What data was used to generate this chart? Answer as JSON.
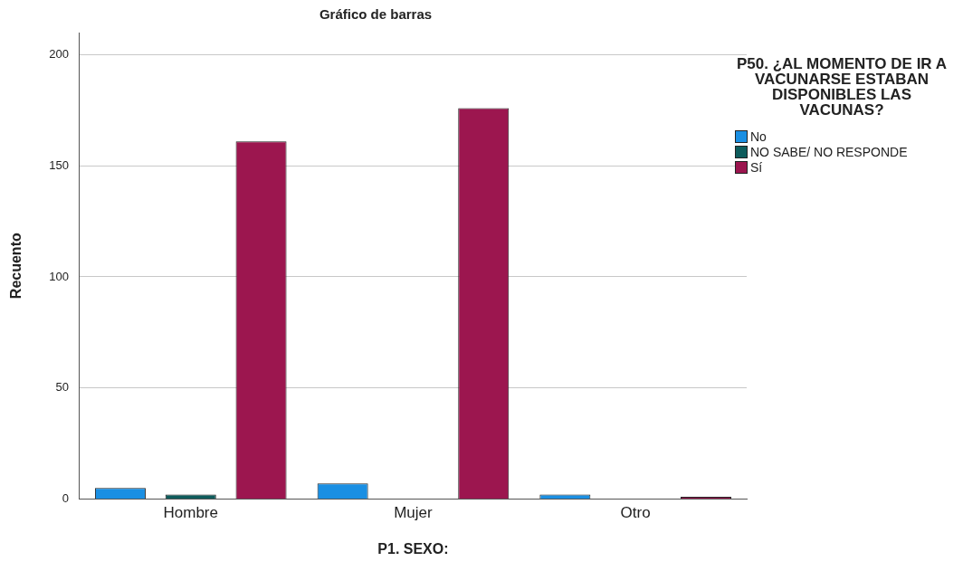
{
  "chart_data": {
    "type": "bar",
    "title": "Gráfico de barras",
    "xlabel": "P1. SEXO:",
    "ylabel": "Recuento",
    "legend_title": "P50. ¿AL MOMENTO DE IR A VACUNARSE ESTABAN DISPONIBLES LAS VACUNAS?",
    "categories": [
      "Hombre",
      "Mujer",
      "Otro"
    ],
    "series": [
      {
        "name": "No",
        "color": "#1a8fe3",
        "values": [
          5,
          7,
          2
        ]
      },
      {
        "name": "NO SABE/ NO RESPONDE",
        "color": "#0e5c5c",
        "values": [
          2,
          0,
          0
        ]
      },
      {
        "name": "Sí",
        "color": "#9c164f",
        "values": [
          161,
          176,
          1
        ]
      }
    ],
    "ylim": [
      0,
      210
    ],
    "yticks": [
      0,
      50,
      100,
      150,
      200
    ],
    "grid": "y",
    "legend": "right"
  }
}
